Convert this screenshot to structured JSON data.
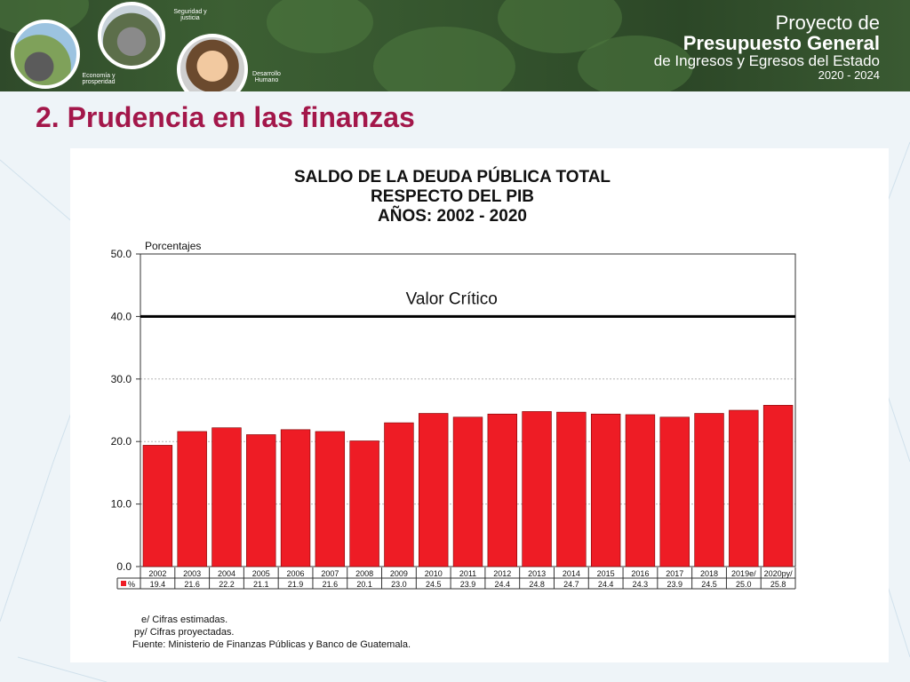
{
  "banner": {
    "circle_labels": [
      "Economía y prosperidad",
      "Seguridad y justicia",
      "Desarrollo Humano"
    ],
    "brand_line1": "Proyecto de",
    "brand_line2": "Presupuesto General",
    "brand_line3": "de Ingresos y Egresos del Estado",
    "brand_line4": "2020 - 2024"
  },
  "slide_title": "2. Prudencia en las finanzas",
  "footnotes": [
    "e/ Cifras estimadas.",
    "py/ Cifras proyectadas.",
    "Fuente: Ministerio de Finanzas Públicas y Banco de Guatemala."
  ],
  "colors": {
    "bar": "#ee1c25",
    "title": "#a3174a",
    "critical_line": "#000000"
  },
  "chart_data": {
    "type": "bar",
    "title_lines": [
      "SALDO DE LA DEUDA PÚBLICA TOTAL",
      "RESPECTO DEL PIB",
      "AÑOS: 2002 - 2020"
    ],
    "ylabel": "Porcentajes",
    "ylim": [
      0,
      50
    ],
    "yticks": [
      "0.0",
      "10.0",
      "20.0",
      "30.0",
      "40.0",
      "50.0"
    ],
    "grid": true,
    "categories": [
      "2002",
      "2003",
      "2004",
      "2005",
      "2006",
      "2007",
      "2008",
      "2009",
      "2010",
      "2011",
      "2012",
      "2013",
      "2014",
      "2015",
      "2016",
      "2017",
      "2018",
      "2019e/",
      "2020py/"
    ],
    "series": [
      {
        "name": "%",
        "values": [
          19.4,
          21.6,
          22.2,
          21.1,
          21.9,
          21.6,
          20.1,
          23.0,
          24.5,
          23.9,
          24.4,
          24.8,
          24.7,
          24.4,
          24.3,
          23.9,
          24.5,
          25.0,
          25.8
        ]
      }
    ],
    "value_labels": [
      "19.4",
      "21.6",
      "22.2",
      "21.1",
      "21.9",
      "21.6",
      "20.1",
      "23.0",
      "24.5",
      "23.9",
      "24.4",
      "24.8",
      "24.7",
      "24.4",
      "24.3",
      "23.9",
      "24.5",
      "25.0",
      "25.8"
    ],
    "reference_line": {
      "label": "Valor Crítico",
      "value": 40
    }
  }
}
